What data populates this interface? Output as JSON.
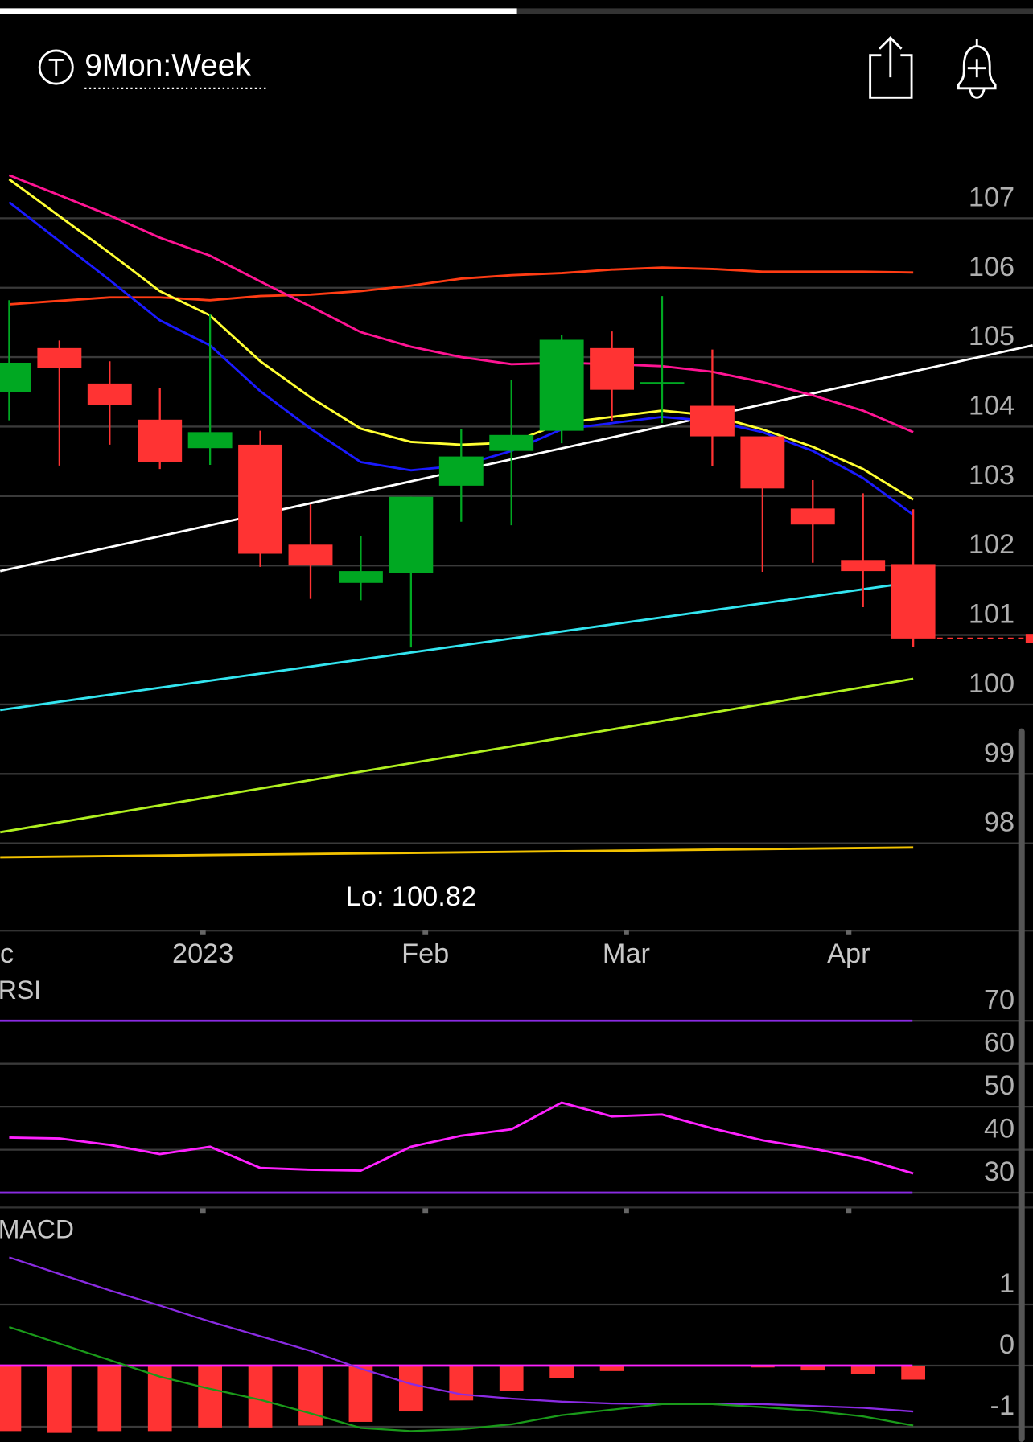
{
  "header": {
    "symbol_label": "9Mon:Week"
  },
  "chart_data": [
    {
      "type": "candlestick",
      "categories": [
        null,
        null,
        null,
        null,
        null,
        null,
        null,
        null,
        null,
        null,
        null,
        null,
        null,
        null,
        null,
        null,
        null,
        null,
        null
      ],
      "open": [
        104.5,
        105.13,
        104.62,
        104.1,
        103.69,
        103.74,
        102.3,
        101.75,
        101.89,
        103.15,
        103.65,
        103.94,
        105.13,
        104.63,
        104.3,
        103.86,
        102.82,
        102.08,
        102.02
      ],
      "high": [
        105.82,
        105.24,
        104.94,
        104.55,
        105.62,
        103.94,
        102.88,
        102.43,
        102.99,
        103.97,
        104.67,
        105.32,
        105.37,
        105.88,
        105.11,
        103.86,
        103.23,
        103.04,
        102.81
      ],
      "low": [
        104.09,
        103.44,
        103.74,
        103.39,
        103.45,
        101.98,
        101.52,
        101.5,
        100.82,
        102.63,
        102.58,
        103.76,
        104.08,
        104.05,
        103.43,
        101.91,
        102.04,
        101.4,
        100.83
      ],
      "close": [
        104.92,
        104.84,
        104.31,
        103.49,
        103.92,
        102.17,
        102.0,
        101.92,
        102.99,
        103.57,
        103.88,
        105.25,
        104.53,
        104.64,
        103.86,
        103.11,
        102.59,
        101.92,
        100.95
      ],
      "up_color": "#00a822",
      "down_color": "#ff3333",
      "series": [
        {
          "color": "#ff3c14",
          "values": [
            105.76,
            105.81,
            105.86,
            105.86,
            105.82,
            105.88,
            105.9,
            105.95,
            106.03,
            106.13,
            106.18,
            106.21,
            106.26,
            106.29,
            106.27,
            106.23,
            106.23,
            106.23,
            106.22
          ]
        },
        {
          "color": "#ff1493",
          "values": [
            107.62,
            107.33,
            107.04,
            106.72,
            106.46,
            106.09,
            105.73,
            105.36,
            105.15,
            105.0,
            104.9,
            104.92,
            104.9,
            104.87,
            104.79,
            104.64,
            104.45,
            104.23,
            103.92
          ]
        },
        {
          "color": "#ffff33",
          "values": [
            107.56,
            107.03,
            106.5,
            105.95,
            105.6,
            104.94,
            104.42,
            103.97,
            103.78,
            103.74,
            103.77,
            104.05,
            104.14,
            104.23,
            104.16,
            103.96,
            103.71,
            103.39,
            102.95
          ]
        },
        {
          "color": "#1a1aff",
          "values": [
            107.23,
            106.67,
            106.11,
            105.53,
            105.17,
            104.51,
            103.97,
            103.49,
            103.37,
            103.44,
            103.65,
            103.96,
            104.05,
            104.14,
            104.08,
            103.92,
            103.65,
            103.26,
            102.73
          ]
        }
      ],
      "trendlines": [
        {
          "color": "#ffffff",
          "x": [
            -0.18,
            20.38
          ],
          "values": [
            101.92,
            105.17
          ]
        },
        {
          "color": "#33e5f0",
          "x": [
            -0.18,
            18
          ],
          "values": [
            99.92,
            101.76
          ]
        },
        {
          "color": "#b0f020",
          "x": [
            -0.18,
            18
          ],
          "values": [
            98.16,
            100.37
          ]
        },
        {
          "color": "#f2c200",
          "x": [
            -0.18,
            18
          ],
          "values": [
            97.8,
            97.94
          ]
        }
      ],
      "annotations": [
        {
          "text": "Lo: 100.82"
        }
      ],
      "ylim": [
        96.77,
        107.89
      ],
      "yticks": [
        98,
        99,
        100,
        101,
        102,
        103,
        104,
        105,
        106,
        107
      ],
      "xticks": [
        {
          "value": -0.57,
          "label": "c"
        },
        {
          "value": 3.857,
          "label": "2023"
        },
        {
          "value": 8.286,
          "label": "Feb"
        },
        {
          "value": 12.286,
          "label": "Mar"
        },
        {
          "value": 16.714,
          "label": "Apr"
        }
      ],
      "grid": true
    },
    {
      "type": "line",
      "title": "RSI",
      "categories": [
        null,
        null,
        null,
        null,
        null,
        null,
        null,
        null,
        null,
        null,
        null,
        null,
        null,
        null,
        null,
        null,
        null,
        null,
        null
      ],
      "values": [
        42.83,
        42.62,
        41.12,
        38.98,
        40.7,
        35.78,
        35.35,
        35.13,
        40.7,
        43.26,
        44.76,
        50.96,
        47.75,
        48.18,
        44.97,
        42.19,
        40.27,
        37.91,
        34.49
      ],
      "color": "#ff22ff",
      "levels": [
        70,
        30
      ],
      "level_color": "#8a2be2",
      "ylim": [
        26.15,
        79.63
      ],
      "yticks": [
        30,
        40,
        50,
        60,
        70
      ],
      "grid": true
    },
    {
      "type": "macd",
      "title": "MACD",
      "categories": [
        null,
        null,
        null,
        null,
        null,
        null,
        null,
        null,
        null,
        null,
        null,
        null,
        null,
        null,
        null,
        null,
        null,
        null,
        null
      ],
      "histogram": [
        -1.07,
        -1.1,
        -1.07,
        -1.07,
        -1.01,
        -1.01,
        -0.98,
        -0.92,
        -0.75,
        -0.57,
        -0.41,
        -0.2,
        -0.09,
        -0.01,
        -0.01,
        -0.03,
        -0.08,
        -0.14,
        -0.23
      ],
      "histogram_color": "#ff3333",
      "zero_color": "#ff22ff",
      "series": [
        {
          "color": "#8a2be2",
          "values": [
            1.77,
            1.5,
            1.23,
            0.98,
            0.72,
            0.48,
            0.24,
            -0.05,
            -0.3,
            -0.47,
            -0.54,
            -0.59,
            -0.62,
            -0.63,
            -0.63,
            -0.63,
            -0.66,
            -0.69,
            -0.75
          ]
        },
        {
          "color": "#1a9a1a",
          "values": [
            0.63,
            0.36,
            0.09,
            -0.18,
            -0.38,
            -0.56,
            -0.78,
            -1.02,
            -1.07,
            -1.04,
            -0.96,
            -0.81,
            -0.72,
            -0.63,
            -0.63,
            -0.68,
            -0.74,
            -0.83,
            -0.98
          ]
        }
      ],
      "ylim": [
        -1.248,
        2.406
      ],
      "yticks": [
        -1,
        0,
        1
      ],
      "grid": true
    }
  ]
}
